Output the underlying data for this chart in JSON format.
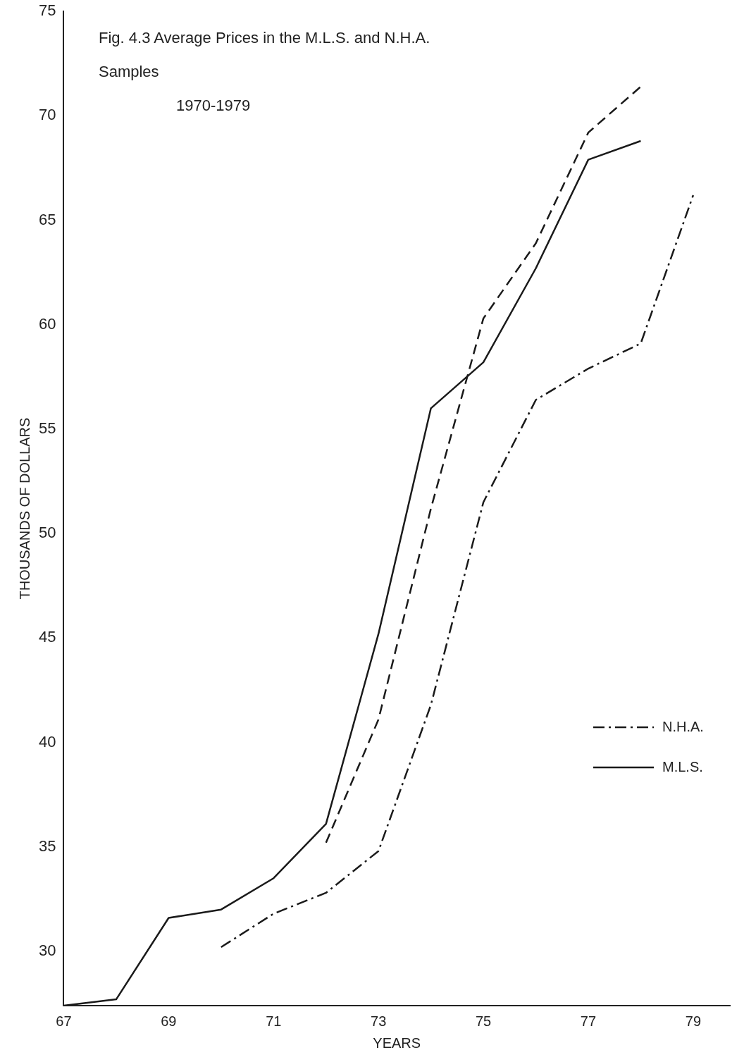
{
  "chart_data": {
    "type": "line",
    "title": "Fig. 4.3  Average Prices in the M.L.S. and N.H.A. Samples",
    "subtitle": "1970-1979",
    "xlabel": "YEARS",
    "ylabel": "THOUSANDS OF DOLLARS",
    "xlim": [
      67,
      79.7
    ],
    "xticks": [
      67,
      69,
      71,
      73,
      75,
      77,
      79
    ],
    "ylim": [
      27.4,
      75
    ],
    "yticks": [
      30,
      35,
      40,
      45,
      50,
      55,
      60,
      65,
      70,
      75
    ],
    "grid": false,
    "legend": "right",
    "marker": "none",
    "series": [
      {
        "name": "N.H.A.",
        "color": "#1a1a1a",
        "line_style": "dashdot",
        "x": [
          70,
          71,
          72,
          73,
          74,
          75,
          76,
          77,
          78,
          79
        ],
        "values": [
          30.2,
          31.8,
          32.8,
          34.8,
          41.8,
          51.5,
          56.4,
          57.9,
          59.1,
          66.2
        ]
      },
      {
        "color": "#1a1a1a",
        "line_style": "dashed",
        "x": [
          72,
          73,
          74,
          75,
          76,
          77,
          78
        ],
        "values": [
          35.2,
          41.1,
          51.2,
          60.3,
          63.9,
          69.2,
          71.4
        ]
      },
      {
        "name": "M.L.S.",
        "color": "#1a1a1a",
        "line_style": "solid",
        "x": [
          67,
          68,
          69,
          70,
          71,
          72,
          73,
          74,
          75,
          76,
          77,
          78
        ],
        "values": [
          27.4,
          27.7,
          31.6,
          32.0,
          33.5,
          36.1,
          45.2,
          56.0,
          58.2,
          62.7,
          67.9,
          68.8
        ]
      }
    ]
  }
}
